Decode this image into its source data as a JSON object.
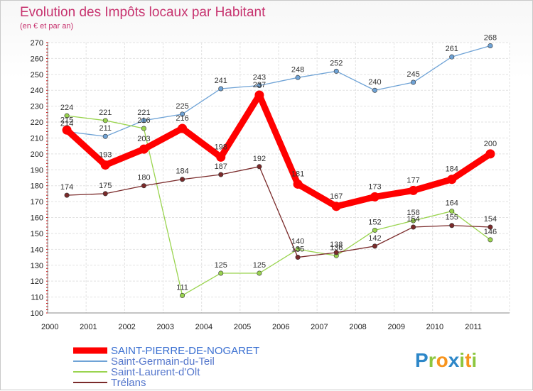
{
  "chart_data": {
    "type": "line",
    "title": "Evolution des Impôts locaux par Habitant",
    "subtitle": "(en € et par an)",
    "xlabel": "",
    "ylabel": "",
    "x": [
      "2000",
      "2001",
      "2002",
      "2003",
      "2004",
      "2005",
      "2006",
      "2007",
      "2008",
      "2009",
      "2010",
      "2011"
    ],
    "ylim": [
      100,
      270
    ],
    "yticks": [
      "100",
      "110",
      "120",
      "130",
      "140",
      "150",
      "160",
      "170",
      "180",
      "190",
      "200",
      "210",
      "220",
      "230",
      "240",
      "250",
      "260",
      "270"
    ],
    "grid": true,
    "legend_position": "bottom-left",
    "series": [
      {
        "name": "SAINT-PIERRE-DE-NOGARET",
        "color": "#ff0000",
        "values": [
          215,
          193,
          203,
          216,
          198,
          237,
          181,
          167,
          173,
          177,
          184,
          200
        ],
        "labels": [
          "215",
          "193",
          "203",
          "216",
          "198",
          "237",
          "181",
          "167",
          "173",
          "177",
          "184",
          "200"
        ],
        "thick": true
      },
      {
        "name": "Saint-Germain-du-Teil",
        "color": "#6fa3d6",
        "values": [
          214,
          211,
          221,
          225,
          241,
          243,
          248,
          252,
          240,
          245,
          261,
          268
        ],
        "labels": [
          "214",
          "211",
          "221",
          "225",
          "241",
          "243",
          "248",
          "252",
          "240",
          "245",
          "261",
          "268"
        ]
      },
      {
        "name": "Saint-Laurent-d'Olt",
        "color": "#9ad44f",
        "values": [
          224,
          221,
          216,
          111,
          125,
          125,
          140,
          136,
          152,
          158,
          164,
          146
        ],
        "labels": [
          "224",
          "221",
          "216",
          "111",
          "125",
          "125",
          "140",
          "136",
          "152",
          "158",
          "164",
          "146"
        ]
      },
      {
        "name": "Trélans",
        "color": "#7a2a2a",
        "values": [
          174,
          175,
          180,
          184,
          187,
          192,
          135,
          138,
          142,
          154,
          155,
          154
        ],
        "labels": [
          "174",
          "175",
          "180",
          "184",
          "187",
          "192",
          "135",
          "138",
          "142",
          "154",
          "155",
          "154"
        ]
      }
    ]
  },
  "brand": {
    "letters": [
      "P",
      "r",
      "o",
      "x",
      "i",
      "t",
      "i"
    ],
    "colors": [
      "#2d87c8",
      "#8cc63f",
      "#f7941d",
      "#2d87c8",
      "#8cc63f",
      "#f7941d",
      "#8cc63f"
    ]
  }
}
